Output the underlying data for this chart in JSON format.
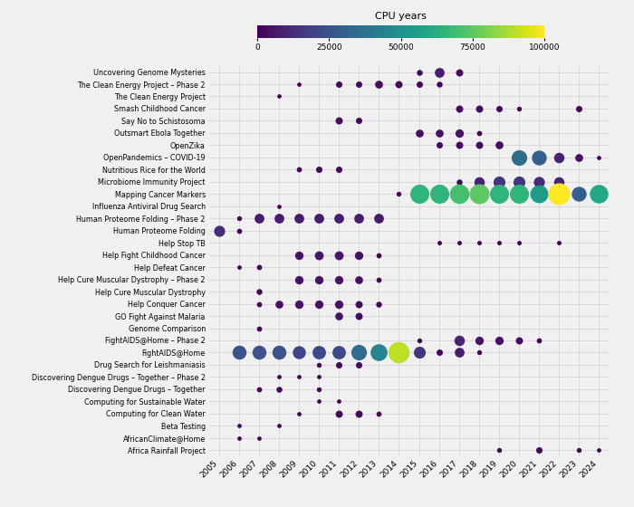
{
  "projects": [
    "Uncovering Genome Mysteries",
    "The Clean Energy Project – Phase 2",
    "The Clean Energy Project",
    "Smash Childhood Cancer",
    "Say No to Schistosoma",
    "Outsmart Ebola Together",
    "OpenZika",
    "OpenPandemics – COVID-19",
    "Nutritious Rice for the World",
    "Microbiome Immunity Project",
    "Mapping Cancer Markers",
    "Influenza Antiviral Drug Search",
    "Human Proteome Folding – Phase 2",
    "Human Proteome Folding",
    "Help Stop TB",
    "Help Fight Childhood Cancer",
    "Help Defeat Cancer",
    "Help Cure Muscular Dystrophy – Phase 2",
    "Help Cure Muscular Dystrophy",
    "Help Conquer Cancer",
    "GO Fight Against Malaria",
    "Genome Comparison",
    "FightAIDS@Home – Phase 2",
    "FightAIDS@Home",
    "Drug Search for Leishmaniasis",
    "Discovering Dengue Drugs – Together – Phase 2",
    "Discovering Dengue Drugs – Together",
    "Computing for Sustainable Water",
    "Computing for Clean Water",
    "Beta Testing",
    "AfricanClimate@Home",
    "Africa Rainfall Project"
  ],
  "data": [
    {
      "project": "Uncovering Genome Mysteries",
      "year": 2015,
      "cpu": 1500
    },
    {
      "project": "Uncovering Genome Mysteries",
      "year": 2016,
      "cpu": 8000
    },
    {
      "project": "Uncovering Genome Mysteries",
      "year": 2017,
      "cpu": 3000
    },
    {
      "project": "The Clean Energy Project – Phase 2",
      "year": 2009,
      "cpu": 500
    },
    {
      "project": "The Clean Energy Project – Phase 2",
      "year": 2011,
      "cpu": 2000
    },
    {
      "project": "The Clean Energy Project – Phase 2",
      "year": 2012,
      "cpu": 2000
    },
    {
      "project": "The Clean Energy Project – Phase 2",
      "year": 2013,
      "cpu": 4000
    },
    {
      "project": "The Clean Energy Project – Phase 2",
      "year": 2014,
      "cpu": 3000
    },
    {
      "project": "The Clean Energy Project – Phase 2",
      "year": 2015,
      "cpu": 2000
    },
    {
      "project": "The Clean Energy Project – Phase 2",
      "year": 2016,
      "cpu": 1500
    },
    {
      "project": "The Clean Energy Project",
      "year": 2008,
      "cpu": 500
    },
    {
      "project": "Smash Childhood Cancer",
      "year": 2017,
      "cpu": 3000
    },
    {
      "project": "Smash Childhood Cancer",
      "year": 2018,
      "cpu": 3000
    },
    {
      "project": "Smash Childhood Cancer",
      "year": 2019,
      "cpu": 2000
    },
    {
      "project": "Smash Childhood Cancer",
      "year": 2020,
      "cpu": 800
    },
    {
      "project": "Smash Childhood Cancer",
      "year": 2023,
      "cpu": 2000
    },
    {
      "project": "Say No to Schistosoma",
      "year": 2011,
      "cpu": 3000
    },
    {
      "project": "Say No to Schistosoma",
      "year": 2012,
      "cpu": 2000
    },
    {
      "project": "Outsmart Ebola Together",
      "year": 2015,
      "cpu": 4000
    },
    {
      "project": "Outsmart Ebola Together",
      "year": 2016,
      "cpu": 4000
    },
    {
      "project": "Outsmart Ebola Together",
      "year": 2017,
      "cpu": 5000
    },
    {
      "project": "Outsmart Ebola Together",
      "year": 2018,
      "cpu": 1000
    },
    {
      "project": "OpenZika",
      "year": 2016,
      "cpu": 2000
    },
    {
      "project": "OpenZika",
      "year": 2017,
      "cpu": 3000
    },
    {
      "project": "OpenZika",
      "year": 2018,
      "cpu": 3000
    },
    {
      "project": "OpenZika",
      "year": 2019,
      "cpu": 4000
    },
    {
      "project": "OpenPandemics – COVID-19",
      "year": 2020,
      "cpu": 35000
    },
    {
      "project": "OpenPandemics – COVID-19",
      "year": 2021,
      "cpu": 30000
    },
    {
      "project": "OpenPandemics – COVID-19",
      "year": 2022,
      "cpu": 10000
    },
    {
      "project": "OpenPandemics – COVID-19",
      "year": 2023,
      "cpu": 4000
    },
    {
      "project": "OpenPandemics – COVID-19",
      "year": 2024,
      "cpu": 500
    },
    {
      "project": "Nutritious Rice for the World",
      "year": 2009,
      "cpu": 1000
    },
    {
      "project": "Nutritious Rice for the World",
      "year": 2010,
      "cpu": 2000
    },
    {
      "project": "Nutritious Rice for the World",
      "year": 2011,
      "cpu": 2000
    },
    {
      "project": "Microbiome Immunity Project",
      "year": 2017,
      "cpu": 1500
    },
    {
      "project": "Microbiome Immunity Project",
      "year": 2018,
      "cpu": 10000
    },
    {
      "project": "Microbiome Immunity Project",
      "year": 2019,
      "cpu": 15000
    },
    {
      "project": "Microbiome Immunity Project",
      "year": 2020,
      "cpu": 15000
    },
    {
      "project": "Microbiome Immunity Project",
      "year": 2021,
      "cpu": 12000
    },
    {
      "project": "Microbiome Immunity Project",
      "year": 2022,
      "cpu": 10000
    },
    {
      "project": "Mapping Cancer Markers",
      "year": 2014,
      "cpu": 800
    },
    {
      "project": "Mapping Cancer Markers",
      "year": 2015,
      "cpu": 65000
    },
    {
      "project": "Mapping Cancer Markers",
      "year": 2016,
      "cpu": 65000
    },
    {
      "project": "Mapping Cancer Markers",
      "year": 2017,
      "cpu": 70000
    },
    {
      "project": "Mapping Cancer Markers",
      "year": 2018,
      "cpu": 75000
    },
    {
      "project": "Mapping Cancer Markers",
      "year": 2019,
      "cpu": 65000
    },
    {
      "project": "Mapping Cancer Markers",
      "year": 2020,
      "cpu": 65000
    },
    {
      "project": "Mapping Cancer Markers",
      "year": 2021,
      "cpu": 55000
    },
    {
      "project": "Mapping Cancer Markers",
      "year": 2022,
      "cpu": 100000
    },
    {
      "project": "Mapping Cancer Markers",
      "year": 2023,
      "cpu": 30000
    },
    {
      "project": "Mapping Cancer Markers",
      "year": 2024,
      "cpu": 60000
    },
    {
      "project": "Influenza Antiviral Drug Search",
      "year": 2008,
      "cpu": 500
    },
    {
      "project": "Human Proteome Folding – Phase 2",
      "year": 2006,
      "cpu": 800
    },
    {
      "project": "Human Proteome Folding – Phase 2",
      "year": 2007,
      "cpu": 8000
    },
    {
      "project": "Human Proteome Folding – Phase 2",
      "year": 2008,
      "cpu": 8000
    },
    {
      "project": "Human Proteome Folding – Phase 2",
      "year": 2009,
      "cpu": 8000
    },
    {
      "project": "Human Proteome Folding – Phase 2",
      "year": 2010,
      "cpu": 8000
    },
    {
      "project": "Human Proteome Folding – Phase 2",
      "year": 2011,
      "cpu": 8000
    },
    {
      "project": "Human Proteome Folding – Phase 2",
      "year": 2012,
      "cpu": 8000
    },
    {
      "project": "Human Proteome Folding – Phase 2",
      "year": 2013,
      "cpu": 8000
    },
    {
      "project": "Human Proteome Folding",
      "year": 2005,
      "cpu": 12000
    },
    {
      "project": "Human Proteome Folding",
      "year": 2006,
      "cpu": 1000
    },
    {
      "project": "Help Stop TB",
      "year": 2016,
      "cpu": 600
    },
    {
      "project": "Help Stop TB",
      "year": 2017,
      "cpu": 600
    },
    {
      "project": "Help Stop TB",
      "year": 2018,
      "cpu": 600
    },
    {
      "project": "Help Stop TB",
      "year": 2019,
      "cpu": 600
    },
    {
      "project": "Help Stop TB",
      "year": 2020,
      "cpu": 600
    },
    {
      "project": "Help Stop TB",
      "year": 2022,
      "cpu": 600
    },
    {
      "project": "Help Fight Childhood Cancer",
      "year": 2009,
      "cpu": 5000
    },
    {
      "project": "Help Fight Childhood Cancer",
      "year": 2010,
      "cpu": 6000
    },
    {
      "project": "Help Fight Childhood Cancer",
      "year": 2011,
      "cpu": 6000
    },
    {
      "project": "Help Fight Childhood Cancer",
      "year": 2012,
      "cpu": 5000
    },
    {
      "project": "Help Fight Childhood Cancer",
      "year": 2013,
      "cpu": 1000
    },
    {
      "project": "Help Defeat Cancer",
      "year": 2006,
      "cpu": 500
    },
    {
      "project": "Help Defeat Cancer",
      "year": 2007,
      "cpu": 1000
    },
    {
      "project": "Help Cure Muscular Dystrophy – Phase 2",
      "year": 2009,
      "cpu": 5000
    },
    {
      "project": "Help Cure Muscular Dystrophy – Phase 2",
      "year": 2010,
      "cpu": 5000
    },
    {
      "project": "Help Cure Muscular Dystrophy – Phase 2",
      "year": 2011,
      "cpu": 5000
    },
    {
      "project": "Help Cure Muscular Dystrophy – Phase 2",
      "year": 2012,
      "cpu": 4000
    },
    {
      "project": "Help Cure Muscular Dystrophy – Phase 2",
      "year": 2013,
      "cpu": 1000
    },
    {
      "project": "Help Cure Muscular Dystrophy",
      "year": 2007,
      "cpu": 1500
    },
    {
      "project": "Help Conquer Cancer",
      "year": 2007,
      "cpu": 1000
    },
    {
      "project": "Help Conquer Cancer",
      "year": 2008,
      "cpu": 4000
    },
    {
      "project": "Help Conquer Cancer",
      "year": 2009,
      "cpu": 5000
    },
    {
      "project": "Help Conquer Cancer",
      "year": 2010,
      "cpu": 5000
    },
    {
      "project": "Help Conquer Cancer",
      "year": 2011,
      "cpu": 5000
    },
    {
      "project": "Help Conquer Cancer",
      "year": 2012,
      "cpu": 3000
    },
    {
      "project": "Help Conquer Cancer",
      "year": 2013,
      "cpu": 1500
    },
    {
      "project": "GO Fight Against Malaria",
      "year": 2011,
      "cpu": 4000
    },
    {
      "project": "GO Fight Against Malaria",
      "year": 2012,
      "cpu": 3000
    },
    {
      "project": "Genome Comparison",
      "year": 2007,
      "cpu": 1000
    },
    {
      "project": "FightAIDS@Home – Phase 2",
      "year": 2015,
      "cpu": 800
    },
    {
      "project": "FightAIDS@Home – Phase 2",
      "year": 2017,
      "cpu": 10000
    },
    {
      "project": "FightAIDS@Home – Phase 2",
      "year": 2018,
      "cpu": 5000
    },
    {
      "project": "FightAIDS@Home – Phase 2",
      "year": 2019,
      "cpu": 5000
    },
    {
      "project": "FightAIDS@Home – Phase 2",
      "year": 2020,
      "cpu": 3000
    },
    {
      "project": "FightAIDS@Home – Phase 2",
      "year": 2021,
      "cpu": 1000
    },
    {
      "project": "FightAIDS@Home",
      "year": 2006,
      "cpu": 25000
    },
    {
      "project": "FightAIDS@Home",
      "year": 2007,
      "cpu": 25000
    },
    {
      "project": "FightAIDS@Home",
      "year": 2008,
      "cpu": 25000
    },
    {
      "project": "FightAIDS@Home",
      "year": 2009,
      "cpu": 20000
    },
    {
      "project": "FightAIDS@Home",
      "year": 2010,
      "cpu": 22000
    },
    {
      "project": "FightAIDS@Home",
      "year": 2011,
      "cpu": 22000
    },
    {
      "project": "FightAIDS@Home",
      "year": 2012,
      "cpu": 35000
    },
    {
      "project": "FightAIDS@Home",
      "year": 2013,
      "cpu": 45000
    },
    {
      "project": "FightAIDS@Home",
      "year": 2014,
      "cpu": 90000
    },
    {
      "project": "FightAIDS@Home",
      "year": 2015,
      "cpu": 15000
    },
    {
      "project": "FightAIDS@Home",
      "year": 2016,
      "cpu": 2000
    },
    {
      "project": "FightAIDS@Home",
      "year": 2017,
      "cpu": 8000
    },
    {
      "project": "FightAIDS@Home",
      "year": 2018,
      "cpu": 800
    },
    {
      "project": "Drug Search for Leishmaniasis",
      "year": 2010,
      "cpu": 800
    },
    {
      "project": "Drug Search for Leishmaniasis",
      "year": 2011,
      "cpu": 2000
    },
    {
      "project": "Drug Search for Leishmaniasis",
      "year": 2012,
      "cpu": 2000
    },
    {
      "project": "Discovering Dengue Drugs – Together – Phase 2",
      "year": 2008,
      "cpu": 500
    },
    {
      "project": "Discovering Dengue Drugs – Together – Phase 2",
      "year": 2009,
      "cpu": 500
    },
    {
      "project": "Discovering Dengue Drugs – Together – Phase 2",
      "year": 2010,
      "cpu": 500
    },
    {
      "project": "Discovering Dengue Drugs – Together",
      "year": 2007,
      "cpu": 1000
    },
    {
      "project": "Discovering Dengue Drugs – Together",
      "year": 2008,
      "cpu": 1500
    },
    {
      "project": "Discovering Dengue Drugs – Together",
      "year": 2010,
      "cpu": 800
    },
    {
      "project": "Computing for Sustainable Water",
      "year": 2010,
      "cpu": 500
    },
    {
      "project": "Computing for Sustainable Water",
      "year": 2011,
      "cpu": 500
    },
    {
      "project": "Computing for Clean Water",
      "year": 2009,
      "cpu": 500
    },
    {
      "project": "Computing for Clean Water",
      "year": 2011,
      "cpu": 3000
    },
    {
      "project": "Computing for Clean Water",
      "year": 2012,
      "cpu": 3000
    },
    {
      "project": "Computing for Clean Water",
      "year": 2013,
      "cpu": 1000
    },
    {
      "project": "Beta Testing",
      "year": 2006,
      "cpu": 500
    },
    {
      "project": "Beta Testing",
      "year": 2008,
      "cpu": 500
    },
    {
      "project": "AfricanClimate@Home",
      "year": 2006,
      "cpu": 500
    },
    {
      "project": "AfricanClimate@Home",
      "year": 2007,
      "cpu": 500
    },
    {
      "project": "Africa Rainfall Project",
      "year": 2019,
      "cpu": 800
    },
    {
      "project": "Africa Rainfall Project",
      "year": 2021,
      "cpu": 2000
    },
    {
      "project": "Africa Rainfall Project",
      "year": 2023,
      "cpu": 800
    },
    {
      "project": "Africa Rainfall Project",
      "year": 2024,
      "cpu": 500
    }
  ],
  "colorbar_label": "CPU years",
  "colorbar_ticks": [
    0,
    25000,
    50000,
    75000,
    100000
  ],
  "colorbar_ticklabels": [
    "0",
    "25000",
    "50000",
    "75000",
    "100000"
  ],
  "vmin": 0,
  "vmax": 100000,
  "bg_color": "#f0f0f0",
  "grid_color": "#d0d0d0",
  "years": [
    2005,
    2006,
    2007,
    2008,
    2009,
    2010,
    2011,
    2012,
    2013,
    2014,
    2015,
    2016,
    2017,
    2018,
    2019,
    2020,
    2021,
    2022,
    2023,
    2024
  ]
}
